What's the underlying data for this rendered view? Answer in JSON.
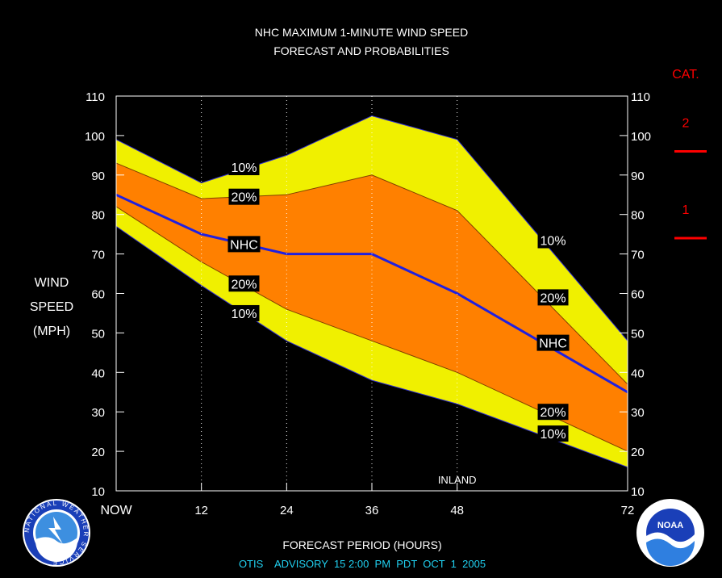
{
  "chart_data": {
    "type": "area",
    "title": "NHC MAXIMUM 1-MINUTE WIND SPEED",
    "subtitle": "FORECAST AND PROBABILITIES",
    "ylabel": [
      "WIND",
      "SPEED",
      "(MPH)"
    ],
    "xlabel": "FORECAST PERIOD (HOURS)",
    "advisory_text": "OTIS    ADVISORY  15 2:00  PM  PDT  OCT  1  2005",
    "x": [
      0,
      12,
      24,
      36,
      48,
      72
    ],
    "x_tick_labels": [
      "NOW",
      "12",
      "24",
      "36",
      "48",
      "72"
    ],
    "xlim": [
      0,
      72
    ],
    "ylim": [
      10,
      110
    ],
    "y_ticks": [
      10,
      20,
      30,
      40,
      50,
      60,
      70,
      80,
      90,
      100,
      110
    ],
    "vertical_gridlines_at": [
      12,
      24,
      36,
      48
    ],
    "inland_label": {
      "text": "INLAND",
      "x": 48
    },
    "series": [
      {
        "name": "10%",
        "role": "upper10",
        "values": [
          99,
          88,
          95,
          105,
          99,
          48
        ],
        "color": "#f0f000"
      },
      {
        "name": "20%",
        "role": "upper20",
        "values": [
          93,
          84,
          85,
          90,
          81,
          37
        ],
        "color": "#ff8000"
      },
      {
        "name": "NHC",
        "role": "nhc",
        "values": [
          85,
          75,
          70,
          70,
          60,
          35
        ],
        "color": "#2020e0"
      },
      {
        "name": "20%",
        "role": "lower20",
        "values": [
          82,
          68,
          56,
          48,
          40,
          20
        ],
        "color": "#ff8000"
      },
      {
        "name": "10%",
        "role": "lower10",
        "values": [
          77,
          62,
          48,
          38,
          32,
          16
        ],
        "color": "#f0f000"
      }
    ],
    "band_labels": [
      {
        "text": "10%",
        "x": 18,
        "y": 92
      },
      {
        "text": "20%",
        "x": 18,
        "y": 84.5
      },
      {
        "text": "NHC",
        "x": 18,
        "y": 72.5
      },
      {
        "text": "20%",
        "x": 18,
        "y": 62.5
      },
      {
        "text": "10%",
        "x": 18,
        "y": 55
      },
      {
        "text": "10%",
        "x": 61.5,
        "y": 73.5
      },
      {
        "text": "20%",
        "x": 61.5,
        "y": 59
      },
      {
        "text": "NHC",
        "x": 61.5,
        "y": 47.5
      },
      {
        "text": "20%",
        "x": 61.5,
        "y": 30
      },
      {
        "text": "10%",
        "x": 61.5,
        "y": 24.5
      }
    ],
    "category_legend": {
      "title": "CAT.",
      "entries": [
        {
          "label": "2",
          "threshold_mph": 96
        },
        {
          "label": "1",
          "threshold_mph": 74
        }
      ],
      "color": "#ff0000"
    }
  },
  "logos": {
    "left": "NATIONAL WEATHER SERVICE",
    "right": "NOAA"
  }
}
